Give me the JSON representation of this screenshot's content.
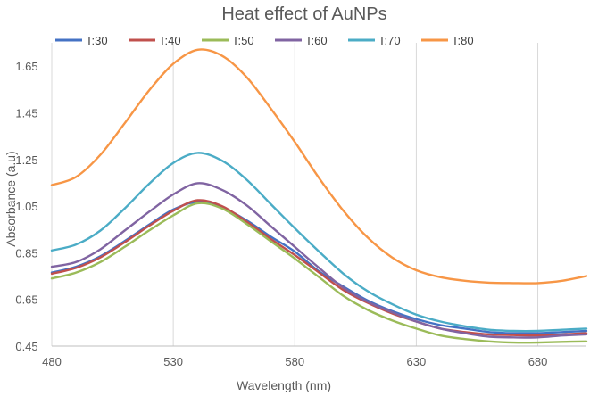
{
  "chart_data": {
    "type": "line",
    "title": "Heat effect of AuNPs",
    "xlabel": "Wavelength (nm)",
    "ylabel": "Absorbance (a.u)",
    "xlim": [
      480,
      700
    ],
    "ylim": [
      0.45,
      1.75
    ],
    "x_ticks": [
      480,
      530,
      580,
      630,
      680
    ],
    "x_tick_labels": [
      "480",
      "530",
      "580",
      "630",
      "680"
    ],
    "y_ticks": [
      0.45,
      0.65,
      0.85,
      1.05,
      1.25,
      1.45,
      1.65
    ],
    "y_tick_labels": [
      "0.45",
      "0.65",
      "0.85",
      "1.05",
      "1.25",
      "1.45",
      "1.65"
    ],
    "legend_position": "top",
    "grid": "vertical",
    "x": [
      480,
      490,
      500,
      510,
      520,
      530,
      540,
      550,
      560,
      570,
      580,
      590,
      600,
      610,
      620,
      630,
      640,
      650,
      660,
      670,
      680,
      690,
      700
    ],
    "series": [
      {
        "name": "T:30",
        "color": "#4472c4",
        "values": [
          0.765,
          0.79,
          0.835,
          0.9,
          0.97,
          1.035,
          1.068,
          1.045,
          0.99,
          0.92,
          0.855,
          0.77,
          0.705,
          0.645,
          0.6,
          0.565,
          0.54,
          0.525,
          0.51,
          0.505,
          0.505,
          0.51,
          0.515
        ]
      },
      {
        "name": "T:40",
        "color": "#c0504d",
        "values": [
          0.76,
          0.785,
          0.83,
          0.895,
          0.965,
          1.03,
          1.075,
          1.05,
          0.985,
          0.91,
          0.84,
          0.765,
          0.69,
          0.635,
          0.59,
          0.555,
          0.525,
          0.51,
          0.5,
          0.497,
          0.495,
          0.5,
          0.505
        ]
      },
      {
        "name": "T:50",
        "color": "#9bbb59",
        "values": [
          0.74,
          0.765,
          0.81,
          0.875,
          0.945,
          1.01,
          1.062,
          1.04,
          0.975,
          0.9,
          0.825,
          0.745,
          0.665,
          0.605,
          0.56,
          0.525,
          0.495,
          0.48,
          0.47,
          0.465,
          0.465,
          0.468,
          0.47
        ]
      },
      {
        "name": "T:60",
        "color": "#8064a2",
        "values": [
          0.79,
          0.81,
          0.865,
          0.945,
          1.025,
          1.1,
          1.148,
          1.12,
          1.055,
          0.965,
          0.875,
          0.785,
          0.7,
          0.64,
          0.595,
          0.555,
          0.525,
          0.505,
          0.49,
          0.487,
          0.487,
          0.495,
          0.5
        ]
      },
      {
        "name": "T:70",
        "color": "#4bacc6",
        "values": [
          0.86,
          0.885,
          0.945,
          1.04,
          1.145,
          1.235,
          1.278,
          1.245,
          1.165,
          1.06,
          0.955,
          0.855,
          0.76,
          0.685,
          0.63,
          0.585,
          0.555,
          0.535,
          0.52,
          0.515,
          0.515,
          0.52,
          0.525
        ]
      },
      {
        "name": "T:80",
        "color": "#f79646",
        "values": [
          1.14,
          1.175,
          1.27,
          1.405,
          1.545,
          1.66,
          1.72,
          1.695,
          1.605,
          1.47,
          1.325,
          1.17,
          1.03,
          0.915,
          0.83,
          0.775,
          0.745,
          0.73,
          0.722,
          0.72,
          0.72,
          0.73,
          0.75
        ]
      }
    ]
  }
}
